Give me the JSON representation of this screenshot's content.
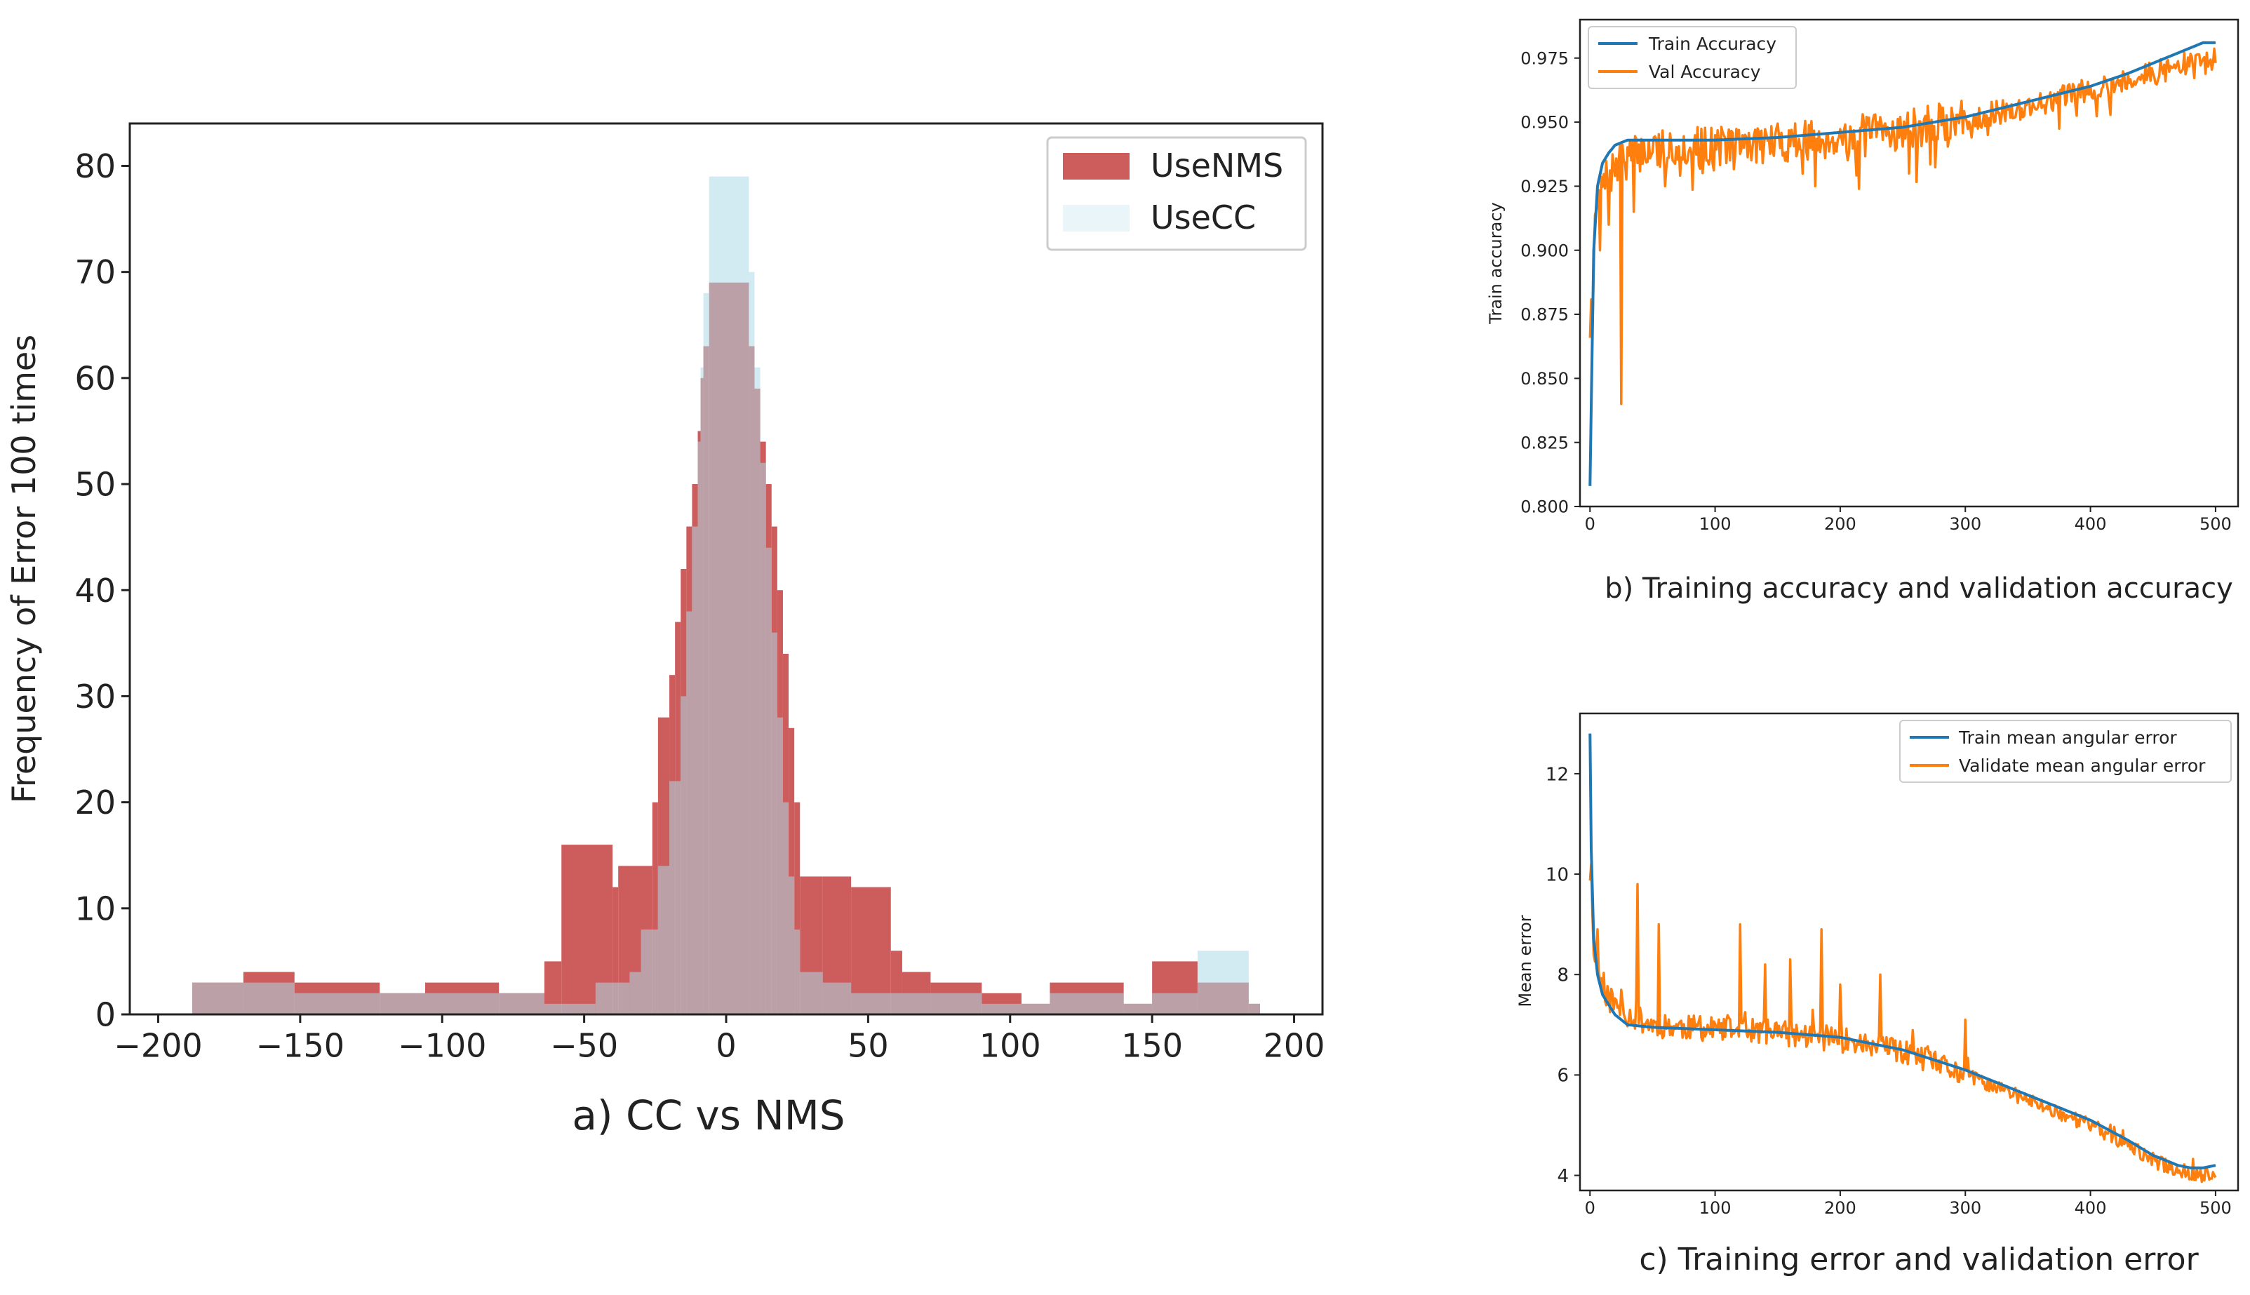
{
  "chart_data": [
    {
      "type": "histogram",
      "caption": "a) CC vs NMS",
      "xlabel": "",
      "ylabel": "Frequency of Error 100 times",
      "xlim": [
        -200,
        200
      ],
      "ylim": [
        0,
        80
      ],
      "xticks": [
        -200,
        -150,
        -100,
        -50,
        0,
        50,
        100,
        150,
        200
      ],
      "xtick_labels": [
        "−200",
        "−150",
        "−100",
        "−50",
        "0",
        "50",
        "100",
        "150",
        "200"
      ],
      "yticks": [
        0,
        10,
        20,
        30,
        40,
        50,
        60,
        70,
        80
      ],
      "ytick_labels": [
        "0",
        "10",
        "20",
        "30",
        "40",
        "50",
        "60",
        "70",
        "80"
      ],
      "legend_position": "top-right",
      "colors": {
        "UseNMS": "#cd5c5c",
        "UseCC": "#add8e6"
      },
      "series": [
        {
          "name": "UseNMS",
          "bins": [
            [
              -188,
              -170,
              3
            ],
            [
              -170,
              -152,
              4
            ],
            [
              -152,
              -122,
              3
            ],
            [
              -122,
              -106,
              2
            ],
            [
              -106,
              -80,
              3
            ],
            [
              -80,
              -64,
              2
            ],
            [
              -64,
              -58,
              5
            ],
            [
              -58,
              -40,
              16
            ],
            [
              -40,
              -38,
              12
            ],
            [
              -38,
              -26,
              14
            ],
            [
              -26,
              -24,
              20
            ],
            [
              -24,
              -20,
              28
            ],
            [
              -20,
              -18,
              32
            ],
            [
              -18,
              -16,
              37
            ],
            [
              -16,
              -14,
              42
            ],
            [
              -14,
              -12,
              46
            ],
            [
              -12,
              -10,
              50
            ],
            [
              -10,
              -9,
              55
            ],
            [
              -9,
              -8,
              60
            ],
            [
              -8,
              -6,
              63
            ],
            [
              -6,
              8,
              69
            ],
            [
              8,
              10,
              63
            ],
            [
              10,
              12,
              59
            ],
            [
              12,
              14,
              54
            ],
            [
              14,
              16,
              50
            ],
            [
              16,
              18,
              46
            ],
            [
              18,
              20,
              40
            ],
            [
              20,
              22,
              34
            ],
            [
              22,
              24,
              27
            ],
            [
              24,
              26,
              20
            ],
            [
              26,
              34,
              13
            ],
            [
              34,
              44,
              13
            ],
            [
              44,
              58,
              12
            ],
            [
              58,
              62,
              6
            ],
            [
              62,
              72,
              4
            ],
            [
              72,
              90,
              3
            ],
            [
              90,
              104,
              2
            ],
            [
              104,
              114,
              1
            ],
            [
              114,
              140,
              3
            ],
            [
              140,
              150,
              1
            ],
            [
              150,
              166,
              5
            ],
            [
              166,
              184,
              3
            ],
            [
              184,
              188,
              1
            ]
          ]
        },
        {
          "name": "UseCC",
          "bins": [
            [
              -188,
              -170,
              3
            ],
            [
              -170,
              -152,
              3
            ],
            [
              -152,
              -122,
              2
            ],
            [
              -122,
              -106,
              2
            ],
            [
              -106,
              -80,
              2
            ],
            [
              -80,
              -64,
              2
            ],
            [
              -64,
              -46,
              1
            ],
            [
              -46,
              -34,
              3
            ],
            [
              -34,
              -30,
              4
            ],
            [
              -30,
              -24,
              8
            ],
            [
              -24,
              -20,
              14
            ],
            [
              -20,
              -16,
              22
            ],
            [
              -16,
              -14,
              30
            ],
            [
              -14,
              -12,
              38
            ],
            [
              -12,
              -10,
              46
            ],
            [
              -10,
              -9,
              54
            ],
            [
              -9,
              -8,
              61
            ],
            [
              -8,
              -6,
              68
            ],
            [
              -6,
              8,
              79
            ],
            [
              8,
              10,
              70
            ],
            [
              10,
              12,
              61
            ],
            [
              12,
              14,
              52
            ],
            [
              14,
              16,
              44
            ],
            [
              16,
              18,
              36
            ],
            [
              18,
              20,
              28
            ],
            [
              20,
              22,
              20
            ],
            [
              22,
              24,
              13
            ],
            [
              24,
              26,
              8
            ],
            [
              26,
              34,
              4
            ],
            [
              34,
              44,
              3
            ],
            [
              44,
              58,
              2
            ],
            [
              58,
              62,
              2
            ],
            [
              62,
              72,
              2
            ],
            [
              72,
              90,
              2
            ],
            [
              90,
              104,
              1
            ],
            [
              104,
              114,
              1
            ],
            [
              114,
              140,
              2
            ],
            [
              140,
              150,
              1
            ],
            [
              150,
              166,
              2
            ],
            [
              166,
              184,
              6
            ],
            [
              184,
              188,
              1
            ]
          ]
        }
      ]
    },
    {
      "type": "line",
      "caption": "b) Training accuracy and validation accuracy",
      "xlabel": "",
      "ylabel": "Train accuracy",
      "xlim": [
        -8,
        518
      ],
      "ylim": [
        0.8,
        0.99
      ],
      "xticks": [
        0,
        100,
        200,
        300,
        400,
        500
      ],
      "xtick_labels": [
        "0",
        "100",
        "200",
        "300",
        "400",
        "500"
      ],
      "yticks": [
        0.8,
        0.825,
        0.85,
        0.875,
        0.9,
        0.925,
        0.95,
        0.975
      ],
      "ytick_labels": [
        "0.800",
        "0.825",
        "0.850",
        "0.875",
        "0.900",
        "0.925",
        "0.950",
        "0.975"
      ],
      "legend_position": "top-left",
      "colors": {
        "Train Accuracy": "#1f77b4",
        "Val Accuracy": "#ff7f0e"
      },
      "series": [
        {
          "name": "Train Accuracy",
          "x": [
            0,
            3,
            6,
            10,
            15,
            20,
            30,
            50,
            100,
            150,
            200,
            250,
            300,
            350,
            400,
            430,
            460,
            480,
            490,
            500
          ],
          "y": [
            0.808,
            0.9,
            0.925,
            0.934,
            0.938,
            0.941,
            0.943,
            0.943,
            0.943,
            0.944,
            0.946,
            0.948,
            0.952,
            0.958,
            0.964,
            0.969,
            0.975,
            0.979,
            0.981,
            0.981
          ]
        },
        {
          "name": "Val Accuracy",
          "points": 501,
          "noise_seed": 7,
          "dips": [
            [
              2,
              0.87
            ],
            [
              8,
              0.9
            ],
            [
              15,
              0.91
            ],
            [
              25,
              0.84
            ],
            [
              35,
              0.915
            ],
            [
              60,
              0.925
            ],
            [
              180,
              0.925
            ],
            [
              215,
              0.924
            ],
            [
              255,
              0.93
            ]
          ],
          "x": [
            0,
            5,
            10,
            20,
            30,
            50,
            100,
            150,
            200,
            250,
            300,
            350,
            400,
            450,
            480,
            500
          ],
          "y": [
            0.87,
            0.915,
            0.925,
            0.932,
            0.936,
            0.94,
            0.941,
            0.942,
            0.944,
            0.947,
            0.951,
            0.956,
            0.963,
            0.969,
            0.973,
            0.974
          ],
          "noise": 0.008
        }
      ]
    },
    {
      "type": "line",
      "caption": "c) Training error and validation error",
      "xlabel": "",
      "ylabel": "Mean error",
      "xlim": [
        -8,
        518
      ],
      "ylim": [
        3.7,
        13.2
      ],
      "xticks": [
        0,
        100,
        200,
        300,
        400,
        500
      ],
      "xtick_labels": [
        "0",
        "100",
        "200",
        "300",
        "400",
        "500"
      ],
      "yticks": [
        4,
        6,
        8,
        10,
        12
      ],
      "ytick_labels": [
        "4",
        "6",
        "8",
        "10",
        "12"
      ],
      "legend_position": "top-right",
      "colors": {
        "Train mean angular error": "#1f77b4",
        "Validate mean angular error": "#ff7f0e"
      },
      "series": [
        {
          "name": "Train mean angular error",
          "x": [
            0,
            1,
            3,
            6,
            10,
            20,
            30,
            50,
            100,
            150,
            200,
            250,
            300,
            350,
            400,
            430,
            450,
            470,
            480,
            490,
            500
          ],
          "y": [
            12.8,
            10.5,
            8.7,
            8.0,
            7.6,
            7.2,
            7.0,
            6.95,
            6.9,
            6.85,
            6.75,
            6.5,
            6.1,
            5.6,
            5.1,
            4.7,
            4.4,
            4.2,
            4.15,
            4.15,
            4.2
          ]
        },
        {
          "name": "Validate mean angular error",
          "points": 501,
          "noise_seed": 11,
          "spikes": [
            [
              1,
              10.2
            ],
            [
              6,
              8.9
            ],
            [
              38,
              9.8
            ],
            [
              55,
              9.0
            ],
            [
              120,
              9.0
            ],
            [
              140,
              8.2
            ],
            [
              160,
              8.3
            ],
            [
              185,
              8.9
            ],
            [
              200,
              7.8
            ],
            [
              232,
              8.0
            ],
            [
              300,
              7.1
            ]
          ],
          "x": [
            0,
            3,
            8,
            15,
            30,
            50,
            100,
            150,
            200,
            250,
            300,
            350,
            400,
            430,
            450,
            470,
            490,
            500
          ],
          "y": [
            10.0,
            8.6,
            7.9,
            7.5,
            7.2,
            7.0,
            6.9,
            6.85,
            6.7,
            6.45,
            6.0,
            5.5,
            5.0,
            4.6,
            4.3,
            4.1,
            4.0,
            4.0
          ],
          "noise": 0.25
        }
      ]
    }
  ]
}
